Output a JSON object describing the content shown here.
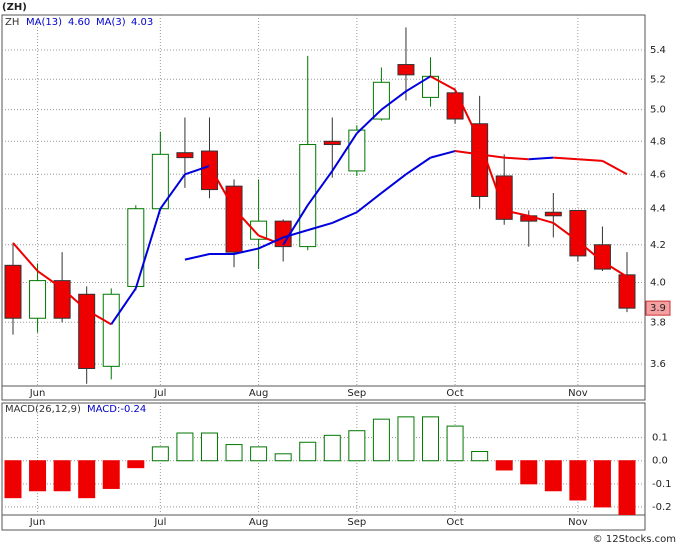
{
  "chart_data": [
    {
      "type": "candlestick",
      "title": "(ZH)",
      "legend_symbol": "ZH",
      "legend": [
        {
          "text": "MA(13)",
          "value_text": "4.60"
        },
        {
          "text": "MA(3)",
          "value_text": "4.03"
        }
      ],
      "categories": [
        null,
        "Jun",
        null,
        null,
        null,
        null,
        "Jul",
        null,
        null,
        null,
        "Aug",
        null,
        null,
        null,
        "Sep",
        null,
        null,
        null,
        "Oct",
        null,
        null,
        null,
        null,
        "Nov",
        null,
        null
      ],
      "open": [
        4.09,
        3.82,
        4.01,
        3.94,
        3.59,
        3.98,
        4.4,
        4.73,
        4.74,
        4.53,
        4.23,
        4.33,
        4.19,
        4.8,
        4.62,
        4.94,
        5.3,
        5.08,
        5.11,
        4.91,
        4.59,
        4.36,
        4.38,
        4.39,
        4.2,
        4.04
      ],
      "high": [
        4.21,
        4.1,
        4.16,
        3.98,
        3.97,
        4.42,
        4.86,
        4.95,
        4.95,
        4.57,
        4.57,
        4.34,
        5.36,
        4.95,
        4.9,
        5.28,
        5.56,
        5.35,
        5.14,
        5.09,
        4.72,
        4.39,
        4.49,
        4.39,
        4.3,
        4.16
      ],
      "low": [
        3.74,
        3.75,
        3.8,
        3.51,
        3.53,
        3.96,
        4.39,
        4.52,
        4.46,
        4.08,
        4.07,
        4.11,
        4.17,
        4.58,
        4.59,
        4.93,
        5.06,
        5.02,
        4.91,
        4.4,
        4.31,
        4.19,
        4.24,
        4.11,
        4.06,
        3.85
      ],
      "close": [
        3.82,
        4.01,
        3.82,
        3.58,
        3.94,
        4.4,
        4.72,
        4.7,
        4.51,
        4.16,
        4.33,
        4.19,
        4.78,
        4.78,
        4.87,
        5.18,
        5.23,
        5.22,
        4.94,
        4.47,
        4.34,
        4.33,
        4.36,
        4.14,
        4.07,
        3.87
      ],
      "up_color": "#007700",
      "down_color": "#ee0000",
      "series": [
        {
          "name": "MA(3)",
          "values": [
            4.21,
            4.06,
            3.97,
            3.86,
            3.79,
            3.97,
            4.4,
            4.6,
            4.65,
            4.4,
            4.25,
            4.2,
            4.42,
            4.62,
            4.85,
            5.0,
            5.12,
            5.22,
            5.13,
            4.8,
            4.39,
            4.36,
            4.32,
            4.22,
            4.11,
            4.03
          ]
        },
        {
          "name": "MA(13)",
          "values": [
            null,
            null,
            null,
            null,
            null,
            null,
            null,
            4.12,
            4.15,
            4.15,
            4.18,
            4.24,
            4.28,
            4.32,
            4.38,
            4.49,
            4.6,
            4.7,
            4.74,
            4.72,
            4.7,
            4.69,
            4.7,
            4.69,
            4.68,
            4.6
          ]
        }
      ],
      "rising_color": "#0000dd",
      "falling_color": "#ee0000",
      "log_scale": true,
      "ylim": [
        3.5,
        5.65
      ],
      "yticks": [
        3.6,
        3.8,
        {
          "value": 4,
          "label": "4.0"
        },
        4.2,
        4.4,
        4.6,
        4.8,
        {
          "value": 5,
          "label": "5.0"
        },
        5.2,
        5.4
      ],
      "last_price": {
        "value": 3.87,
        "label": "3.9"
      },
      "grid": true
    },
    {
      "type": "bar",
      "title": "MACD(26,12,9)",
      "subtitle": "MACD:-0.24",
      "categories": [
        null,
        "Jun",
        null,
        null,
        null,
        null,
        "Jul",
        null,
        null,
        null,
        "Aug",
        null,
        null,
        null,
        "Sep",
        null,
        null,
        null,
        "Oct",
        null,
        null,
        null,
        null,
        "Nov",
        null,
        null
      ],
      "values": [
        -0.16,
        -0.13,
        -0.13,
        -0.16,
        -0.12,
        -0.03,
        0.06,
        0.12,
        0.12,
        0.07,
        0.06,
        0.03,
        0.08,
        0.11,
        0.13,
        0.18,
        0.19,
        0.19,
        0.15,
        0.04,
        -0.04,
        -0.1,
        -0.13,
        -0.17,
        -0.2,
        -0.24
      ],
      "up_color": "#007700",
      "down_color": "#ee0000",
      "ylim": [
        -0.235,
        0.25
      ],
      "yticks": [
        -0.2,
        -0.1,
        {
          "value": 0,
          "label": "0.0"
        },
        0.1
      ],
      "grid": true
    }
  ],
  "footer": "© 12Stocks.com"
}
